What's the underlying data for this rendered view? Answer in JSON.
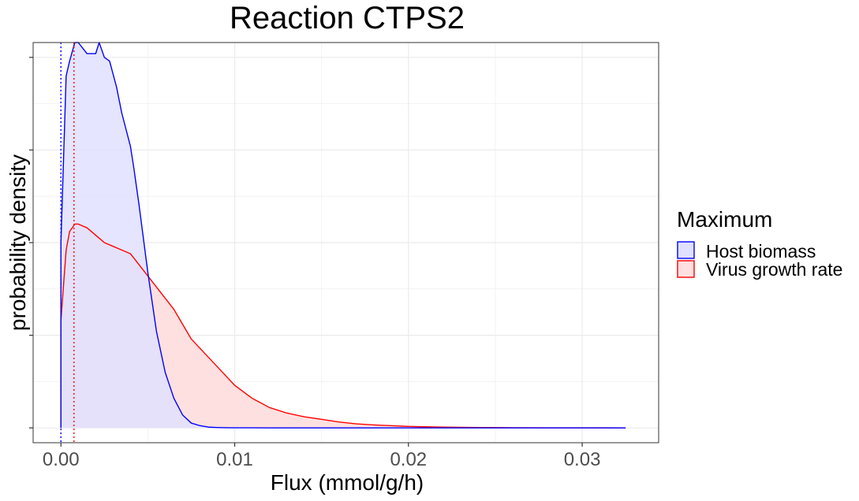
{
  "chart_data": {
    "type": "area",
    "title": "Reaction CTPS2",
    "xlabel": "Flux (mmol/g/h)",
    "ylabel": "probability density",
    "xlim": [
      -0.0016,
      0.0344
    ],
    "ylim": [
      -0.04,
      1.04
    ],
    "x_ticks": [
      0.0,
      0.01,
      0.02,
      0.03
    ],
    "x_tick_labels": [
      "0.00",
      "0.01",
      "0.02",
      "0.03"
    ],
    "y_ticks": [
      0.0,
      0.25,
      0.5,
      0.75,
      1.0
    ],
    "grid": true,
    "legend": {
      "title": "Maximum",
      "position": "right",
      "entries": [
        "Host biomass",
        "Virus growth rate"
      ]
    },
    "series": [
      {
        "name": "Host biomass",
        "color": "#0000ff",
        "fill": "#e0e0ff",
        "mean_line_x": 0.0,
        "x": [
          0.0,
          0.0003,
          0.0005,
          0.0008,
          0.001,
          0.0015,
          0.002,
          0.0022,
          0.0025,
          0.0028,
          0.0032,
          0.0035,
          0.004,
          0.0042,
          0.0045,
          0.005,
          0.0055,
          0.006,
          0.0065,
          0.007,
          0.0075,
          0.008,
          0.0085,
          0.009,
          0.0095,
          0.01,
          0.011,
          0.012,
          0.014,
          0.016,
          0.018,
          0.02,
          0.022,
          0.024,
          0.026,
          0.028,
          0.03,
          0.0325
        ],
        "y": [
          0.5,
          0.95,
          0.99,
          1.04,
          1.04,
          1.01,
          1.01,
          1.04,
          1.0,
          0.99,
          0.92,
          0.85,
          0.76,
          0.7,
          0.6,
          0.42,
          0.26,
          0.15,
          0.08,
          0.035,
          0.013,
          0.006,
          0.002,
          0.001,
          0.0005,
          0.0003,
          0.0002,
          0.0001,
          0.0,
          0.0,
          0.0,
          0.0,
          0.0,
          0.0,
          0.0,
          0.0,
          0.0,
          0.0
        ]
      },
      {
        "name": "Virus growth rate",
        "color": "#ff0000",
        "fill": "#ffe0e0",
        "mean_line_x": 0.00075,
        "x": [
          0.0,
          0.0003,
          0.0005,
          0.0008,
          0.001,
          0.0015,
          0.002,
          0.0025,
          0.003,
          0.0035,
          0.004,
          0.0045,
          0.005,
          0.0055,
          0.006,
          0.0065,
          0.007,
          0.0075,
          0.008,
          0.0085,
          0.009,
          0.0095,
          0.01,
          0.011,
          0.012,
          0.013,
          0.014,
          0.015,
          0.016,
          0.017,
          0.018,
          0.02,
          0.022,
          0.024,
          0.026,
          0.028,
          0.03,
          0.0325
        ],
        "y": [
          0.29,
          0.48,
          0.53,
          0.55,
          0.55,
          0.54,
          0.52,
          0.5,
          0.49,
          0.48,
          0.47,
          0.44,
          0.41,
          0.38,
          0.35,
          0.32,
          0.28,
          0.24,
          0.215,
          0.19,
          0.165,
          0.14,
          0.115,
          0.08,
          0.055,
          0.04,
          0.03,
          0.023,
          0.016,
          0.011,
          0.008,
          0.004,
          0.002,
          0.001,
          0.0005,
          0.0003,
          0.0002,
          0.0
        ]
      }
    ]
  }
}
